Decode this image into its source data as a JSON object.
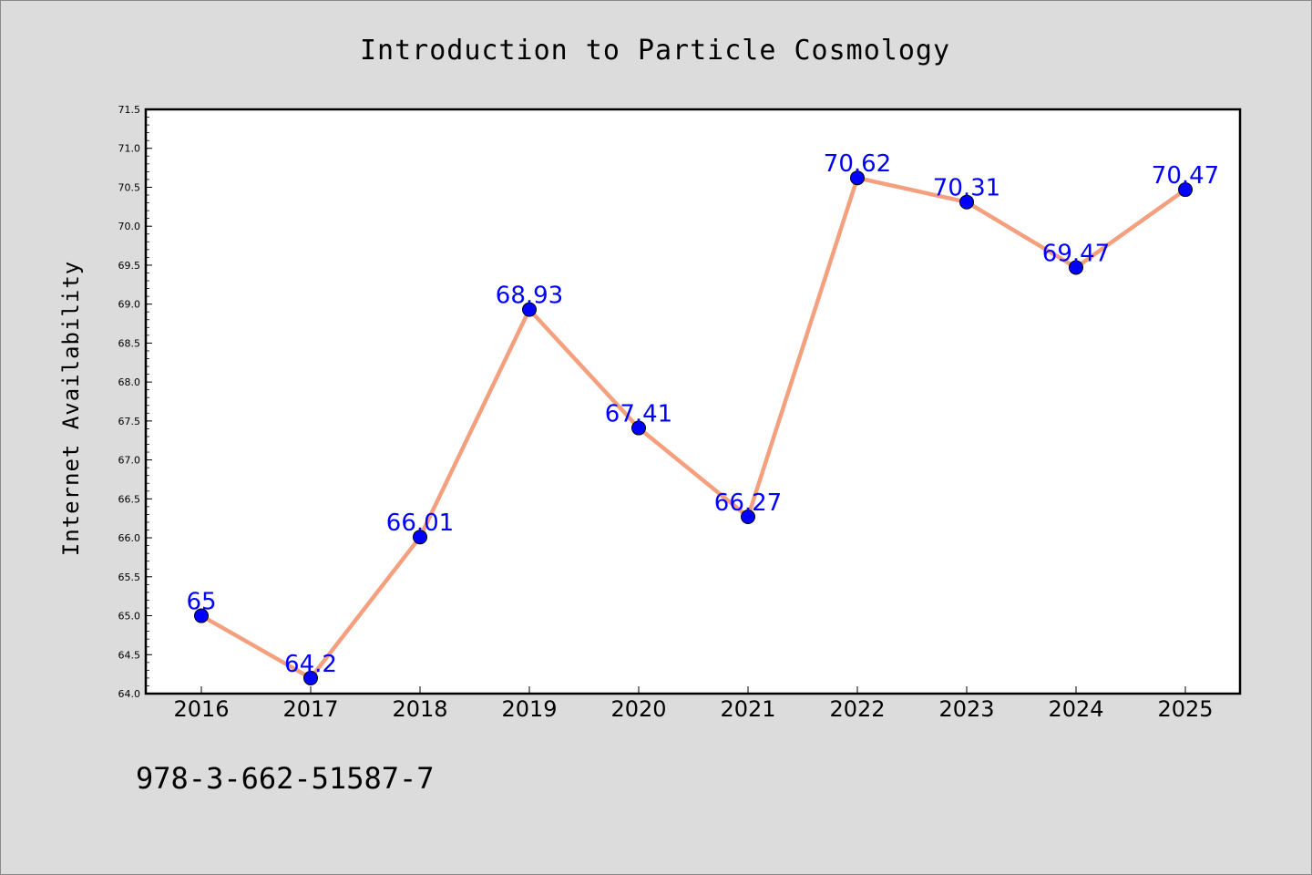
{
  "chart_data": {
    "type": "line",
    "title": "Introduction to Particle Cosmology",
    "xlabel": "",
    "ylabel": "Internet Availability",
    "categories": [
      "2016",
      "2017",
      "2018",
      "2019",
      "2020",
      "2021",
      "2022",
      "2023",
      "2024",
      "2025"
    ],
    "series": [
      {
        "values": [
          65,
          64.2,
          66.01,
          68.93,
          67.41,
          66.27,
          70.62,
          70.31,
          69.47,
          70.47
        ],
        "data_labels": [
          "65",
          "64.2",
          "66.01",
          "68.93",
          "67.41",
          "66.27",
          "70.62",
          "70.31",
          "69.47",
          "70.47"
        ]
      }
    ],
    "ylim": [
      64.0,
      71.5
    ],
    "yticks": [
      "64.0",
      "64.5",
      "65.0",
      "65.5",
      "66.0",
      "66.5",
      "67.0",
      "67.5",
      "68.0",
      "68.5",
      "69.0",
      "69.5",
      "70.0",
      "70.5",
      "71.0",
      "71.5"
    ],
    "grid": false,
    "colors": {
      "line": "#f4a07e",
      "marker": "#0000ff",
      "data_label": "#0000ff",
      "background": "#dcdcdc",
      "plot_background": "#ffffff"
    }
  },
  "footer": {
    "isbn": "978-3-662-51587-7"
  }
}
